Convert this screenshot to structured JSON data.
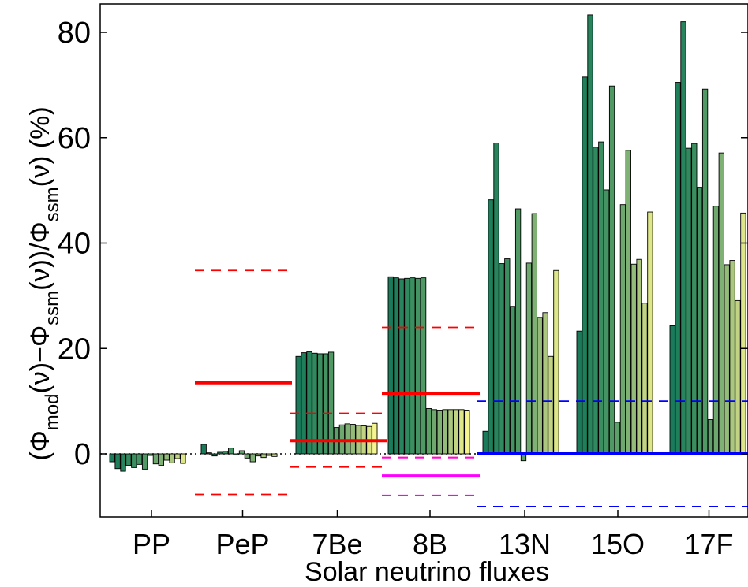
{
  "chart_data": {
    "type": "bar",
    "xlabel": "Solar neutrino fluxes",
    "ylabel": {
      "parts": [
        "(Φ",
        "mod",
        "(ν)−Φ",
        "ssm",
        "(ν))/Φ",
        "ssm",
        "(ν)",
        "(%)"
      ]
    },
    "ylim": [
      -12,
      85
    ],
    "yticks": [
      0,
      20,
      40,
      60,
      80
    ],
    "categories": [
      "PP",
      "PeP",
      "7Be",
      "8B",
      "13N",
      "15O",
      "17F"
    ],
    "series_colors": [
      "#1a7a5a",
      "#1f7f5b",
      "#28845d",
      "#31895f",
      "#3a8e60",
      "#459362",
      "#509965",
      "#5ea06a",
      "#6ea86f",
      "#80b174",
      "#94bb79",
      "#aac67f",
      "#c2d484",
      "#dee68a",
      "#f4f58f"
    ],
    "values": [
      [
        -1.5,
        -2.8,
        -3.3,
        -2.2,
        -2.6,
        -2.0,
        -2.9,
        -0.3,
        -1.9,
        -2.2,
        -1.2,
        -1.7,
        -0.9,
        -1.8,
        null
      ],
      [
        1.8,
        0.2,
        -0.4,
        0.3,
        0.5,
        1.1,
        -0.2,
        0.6,
        -0.8,
        -1.5,
        -0.4,
        -0.7,
        -0.3,
        -0.5,
        null
      ],
      [
        18.5,
        19.2,
        19.4,
        19.1,
        19.0,
        19.0,
        19.3,
        5.0,
        5.5,
        5.7,
        5.6,
        5.4,
        5.3,
        5.2,
        5.8
      ],
      [
        33.6,
        33.4,
        33.2,
        33.3,
        33.4,
        33.3,
        33.4,
        8.6,
        8.4,
        8.3,
        8.4,
        8.4,
        8.4,
        8.4,
        8.3
      ],
      [
        4.3,
        48.2,
        59.0,
        36.1,
        37.0,
        28.0,
        46.5,
        -1.3,
        36.2,
        45.6,
        25.9,
        26.8,
        18.5,
        34.8,
        null
      ],
      [
        23.3,
        71.5,
        83.3,
        58.2,
        59.2,
        50.1,
        69.8,
        6.0,
        47.3,
        57.6,
        36.0,
        36.9,
        28.6,
        45.9,
        null
      ],
      [
        24.3,
        70.5,
        82.0,
        58.0,
        58.9,
        50.6,
        69.2,
        6.5,
        47.0,
        57.1,
        35.9,
        36.7,
        29.1,
        45.7,
        null
      ]
    ],
    "reference_lines": [
      {
        "category": "PeP",
        "center": 13.5,
        "upper": 34.8,
        "lower": -7.7,
        "color": "#ff0000"
      },
      {
        "category": "7Be",
        "center": 2.5,
        "upper": 7.7,
        "lower": -2.5,
        "color": "#ff0000"
      },
      {
        "category": "8B",
        "center": 11.5,
        "upper": 24.0,
        "lower": -0.7,
        "color": "#ff0000"
      },
      {
        "category": "8B",
        "center": -4.2,
        "upper": -0.7,
        "lower": -7.9,
        "color": "#ff00ff"
      },
      {
        "categories": [
          "13N",
          "15O",
          "17F"
        ],
        "center": 0.0,
        "upper": 10.0,
        "lower": -10.0,
        "color": "#0000ff"
      }
    ],
    "zero_line": "dotted",
    "grid": false,
    "legend": "none"
  }
}
